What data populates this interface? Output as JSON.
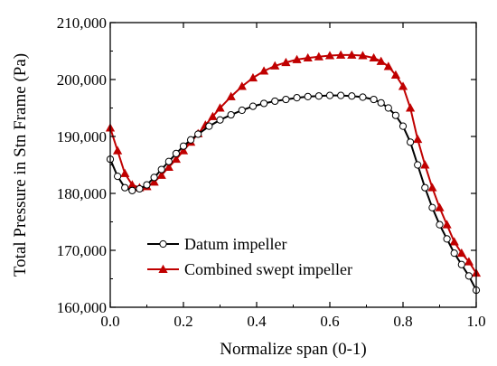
{
  "chart_data": {
    "type": "line",
    "title": "",
    "xlabel": "Normalize span (0-1)",
    "ylabel": "Total Pressure in Stn Frame (Pa)",
    "xlim": [
      0,
      1
    ],
    "ylim": [
      160000,
      210000
    ],
    "x_ticks": [
      0.0,
      0.2,
      0.4,
      0.6,
      0.8,
      1.0
    ],
    "x_tick_labels": [
      "0.0",
      "0.2",
      "0.4",
      "0.6",
      "0.8",
      "1.0"
    ],
    "y_ticks": [
      160000,
      170000,
      180000,
      190000,
      200000,
      210000
    ],
    "y_tick_labels": [
      "160,000",
      "170,000",
      "180,000",
      "190,000",
      "200,000",
      "210,000"
    ],
    "grid": false,
    "legend_position": "bottom-left",
    "series": [
      {
        "name": "Datum impeller",
        "color": "#000000",
        "marker": "circle-open",
        "x": [
          0.0,
          0.02,
          0.04,
          0.06,
          0.08,
          0.1,
          0.12,
          0.14,
          0.16,
          0.18,
          0.2,
          0.22,
          0.24,
          0.27,
          0.3,
          0.33,
          0.36,
          0.39,
          0.42,
          0.45,
          0.48,
          0.51,
          0.54,
          0.57,
          0.6,
          0.63,
          0.66,
          0.69,
          0.72,
          0.74,
          0.76,
          0.78,
          0.8,
          0.82,
          0.84,
          0.86,
          0.88,
          0.9,
          0.92,
          0.94,
          0.96,
          0.98,
          1.0
        ],
        "y": [
          186000,
          183000,
          181000,
          180500,
          180800,
          181500,
          182800,
          184200,
          185600,
          187000,
          188300,
          189400,
          190400,
          191800,
          192900,
          193800,
          194600,
          195300,
          195800,
          196200,
          196500,
          196800,
          197000,
          197100,
          197200,
          197200,
          197100,
          196900,
          196500,
          195900,
          195000,
          193700,
          191800,
          189000,
          185000,
          181000,
          177500,
          174500,
          172000,
          169500,
          167500,
          165500,
          163000
        ]
      },
      {
        "name": "Combined swept impeller",
        "color": "#c00000",
        "marker": "triangle-filled",
        "x": [
          0.0,
          0.02,
          0.04,
          0.06,
          0.08,
          0.1,
          0.12,
          0.14,
          0.16,
          0.18,
          0.2,
          0.22,
          0.24,
          0.26,
          0.28,
          0.3,
          0.33,
          0.36,
          0.39,
          0.42,
          0.45,
          0.48,
          0.51,
          0.54,
          0.57,
          0.6,
          0.63,
          0.66,
          0.69,
          0.72,
          0.74,
          0.76,
          0.78,
          0.8,
          0.82,
          0.84,
          0.86,
          0.88,
          0.9,
          0.92,
          0.94,
          0.96,
          0.98,
          1.0
        ],
        "y": [
          191500,
          187500,
          183500,
          181500,
          181000,
          181200,
          182000,
          183200,
          184600,
          186000,
          187500,
          189000,
          190500,
          192000,
          193500,
          195000,
          197000,
          198800,
          200300,
          201500,
          202400,
          203000,
          203500,
          203800,
          204000,
          204200,
          204300,
          204300,
          204200,
          203800,
          203200,
          202300,
          200800,
          198800,
          195000,
          189500,
          185000,
          181000,
          177500,
          174500,
          171500,
          169500,
          168000,
          166000
        ]
      }
    ]
  }
}
